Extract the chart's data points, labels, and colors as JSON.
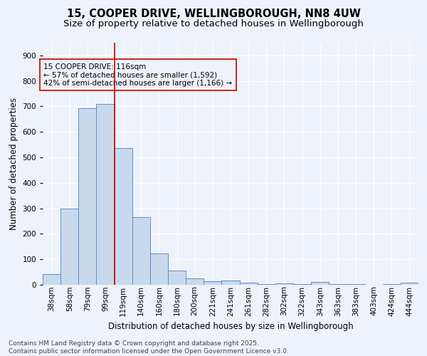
{
  "title_line1": "15, COOPER DRIVE, WELLINGBOROUGH, NN8 4UW",
  "title_line2": "Size of property relative to detached houses in Wellingborough",
  "xlabel": "Distribution of detached houses by size in Wellingborough",
  "ylabel": "Number of detached properties",
  "annotation_line1": "15 COOPER DRIVE: 116sqm",
  "annotation_line2": "← 57% of detached houses are smaller (1,592)",
  "annotation_line3": "42% of semi-detached houses are larger (1,166) →",
  "bar_color": "#c9d9ed",
  "bar_edge_color": "#5b8fc9",
  "vline_color": "#cc0000",
  "categories": [
    "38sqm",
    "58sqm",
    "79sqm",
    "99sqm",
    "119sqm",
    "140sqm",
    "160sqm",
    "180sqm",
    "200sqm",
    "221sqm",
    "241sqm",
    "261sqm",
    "282sqm",
    "302sqm",
    "322sqm",
    "343sqm",
    "363sqm",
    "383sqm",
    "403sqm",
    "424sqm",
    "444sqm"
  ],
  "values": [
    43,
    300,
    693,
    710,
    537,
    265,
    122,
    57,
    25,
    15,
    18,
    7,
    4,
    5,
    4,
    10,
    3,
    4,
    1,
    2,
    8
  ],
  "ylim": [
    0,
    950
  ],
  "yticks": [
    0,
    100,
    200,
    300,
    400,
    500,
    600,
    700,
    800,
    900
  ],
  "vline_x": 3.5,
  "background_color": "#eef2fa",
  "footer": "Contains HM Land Registry data © Crown copyright and database right 2025.\nContains public sector information licensed under the Open Government Licence v3.0.",
  "title_fontsize": 10.5,
  "subtitle_fontsize": 9.5,
  "axis_label_fontsize": 8.5,
  "tick_fontsize": 7.5,
  "annotation_fontsize": 7.5,
  "footer_fontsize": 6.5
}
